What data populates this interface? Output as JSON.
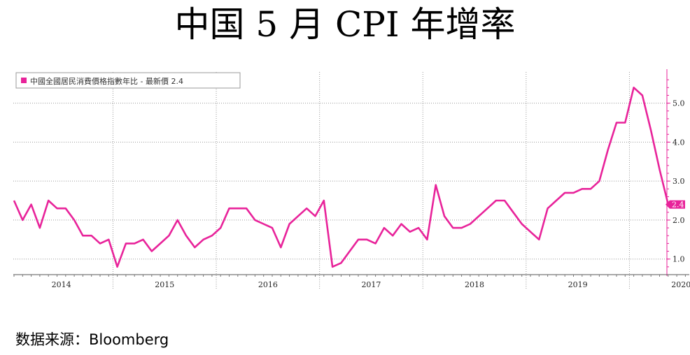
{
  "title": "中国 5 月 CPI 年增率",
  "source": "数据来源：Bloomberg",
  "chart_data": {
    "type": "line",
    "legend": {
      "label": "中國全國居民消費價格指數年比 - 最新價 2.4",
      "color": "#e8239a",
      "placement": "top-left"
    },
    "x": [
      "2014-01",
      "2014-02",
      "2014-03",
      "2014-04",
      "2014-05",
      "2014-06",
      "2014-07",
      "2014-08",
      "2014-09",
      "2014-10",
      "2014-11",
      "2014-12",
      "2015-01",
      "2015-02",
      "2015-03",
      "2015-04",
      "2015-05",
      "2015-06",
      "2015-07",
      "2015-08",
      "2015-09",
      "2015-10",
      "2015-11",
      "2015-12",
      "2016-01",
      "2016-02",
      "2016-03",
      "2016-04",
      "2016-05",
      "2016-06",
      "2016-07",
      "2016-08",
      "2016-09",
      "2016-10",
      "2016-11",
      "2016-12",
      "2017-01",
      "2017-02",
      "2017-03",
      "2017-04",
      "2017-05",
      "2017-06",
      "2017-07",
      "2017-08",
      "2017-09",
      "2017-10",
      "2017-11",
      "2017-12",
      "2018-01",
      "2018-02",
      "2018-03",
      "2018-04",
      "2018-05",
      "2018-06",
      "2018-07",
      "2018-08",
      "2018-09",
      "2018-10",
      "2018-11",
      "2018-12",
      "2019-01",
      "2019-02",
      "2019-03",
      "2019-04",
      "2019-05",
      "2019-06",
      "2019-07",
      "2019-08",
      "2019-09",
      "2019-10",
      "2019-11",
      "2019-12",
      "2020-01",
      "2020-02",
      "2020-03",
      "2020-04",
      "2020-05"
    ],
    "series": [
      {
        "name": "中國全國居民消費價格指數年比",
        "color": "#e8239a",
        "values": [
          2.5,
          2.0,
          2.4,
          1.8,
          2.5,
          2.3,
          2.3,
          2.0,
          1.6,
          1.6,
          1.4,
          1.5,
          0.8,
          1.4,
          1.4,
          1.5,
          1.2,
          1.4,
          1.6,
          2.0,
          1.6,
          1.3,
          1.5,
          1.6,
          1.8,
          2.3,
          2.3,
          2.3,
          2.0,
          1.9,
          1.8,
          1.3,
          1.9,
          2.1,
          2.3,
          2.1,
          2.5,
          0.8,
          0.9,
          1.2,
          1.5,
          1.5,
          1.4,
          1.8,
          1.6,
          1.9,
          1.7,
          1.8,
          1.5,
          2.9,
          2.1,
          1.8,
          1.8,
          1.9,
          2.1,
          2.3,
          2.5,
          2.5,
          2.2,
          1.9,
          1.7,
          1.5,
          2.3,
          2.5,
          2.7,
          2.7,
          2.8,
          2.8,
          3.0,
          3.8,
          4.5,
          4.5,
          5.4,
          5.2,
          4.3,
          3.3,
          2.4
        ]
      }
    ],
    "last_value_label": "2.4",
    "year_labels": [
      "2014",
      "2015",
      "2016",
      "2017",
      "2018",
      "2019",
      "2020"
    ],
    "y_ticks": [
      "1.0",
      "2.0",
      "3.0",
      "4.0",
      "5.0"
    ],
    "ylim": [
      0.6,
      5.8
    ],
    "y_axis_side": "right",
    "grid": true
  }
}
